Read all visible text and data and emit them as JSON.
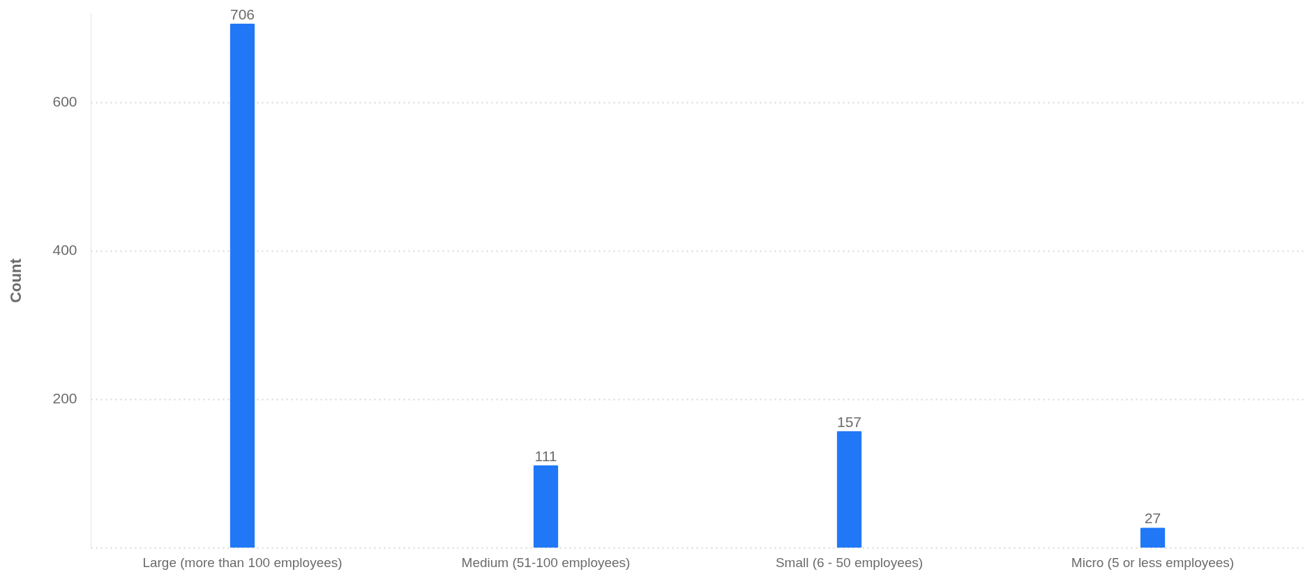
{
  "chart_data": {
    "type": "bar",
    "ylabel": "Count",
    "categories": [
      "Large (more than 100 employees)",
      "Medium (51-100 employees)",
      "Small (6 - 50 employees)",
      "Micro (5 or less employees)"
    ],
    "values": [
      706,
      111,
      157,
      27
    ],
    "color": "#2178f7",
    "ylim": [
      0,
      720
    ],
    "yticks": [
      {
        "value": 0,
        "label": null
      },
      200,
      400,
      600
    ],
    "grid": true,
    "data_labels": true
  }
}
